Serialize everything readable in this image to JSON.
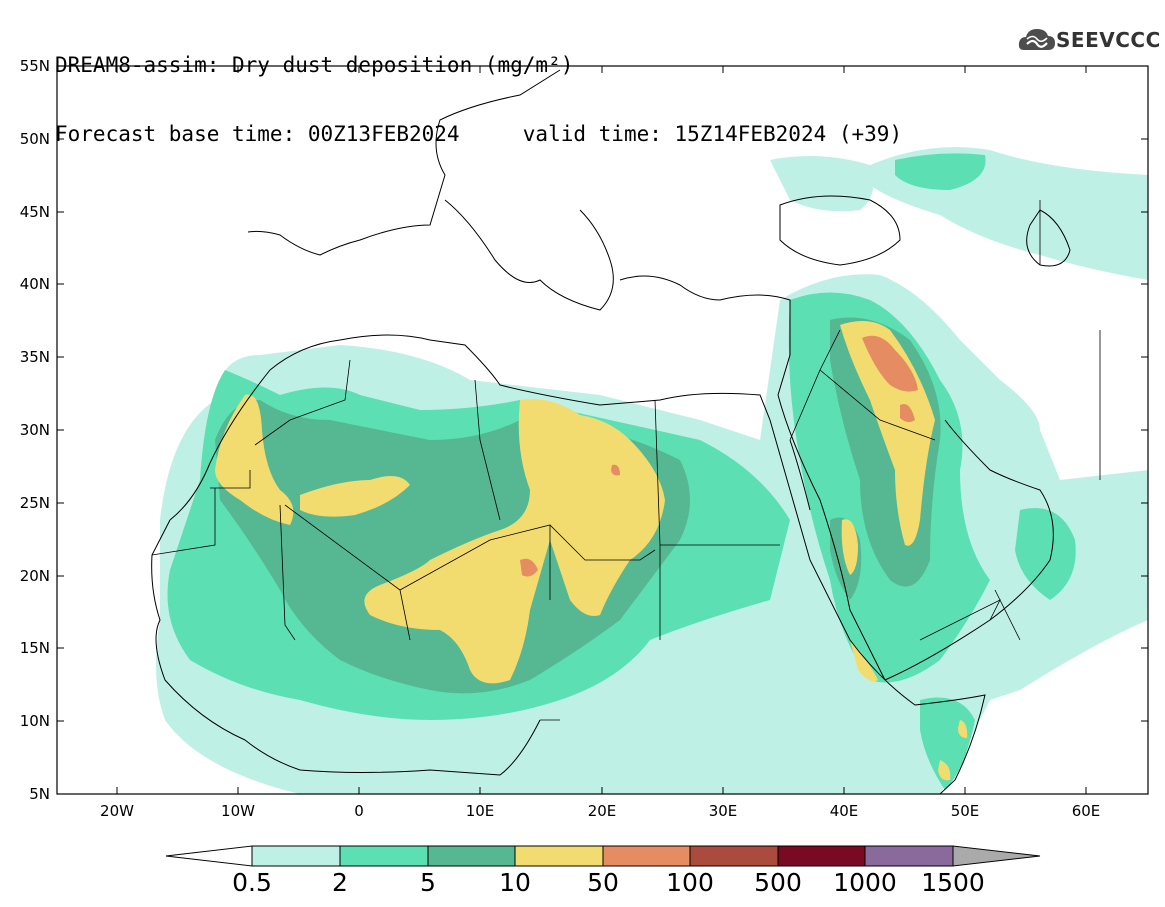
{
  "header": {
    "title_line1": "DREAM8-assim: Dry dust deposition (mg/m²)",
    "title_line2": "Forecast base time: 00Z13FEB2024     valid time: 15Z14FEB2024 (+39)"
  },
  "logo": {
    "text": "SEEVCCC",
    "icon": "cloud-icon",
    "color": "#4d4d4d"
  },
  "map": {
    "lon_range": [
      -25,
      65
    ],
    "lat_range": [
      5,
      55
    ],
    "y_ticks": [
      "55N",
      "50N",
      "45N",
      "40N",
      "35N",
      "30N",
      "25N",
      "20N",
      "15N",
      "10N",
      "5N"
    ],
    "x_ticks": [
      "20W",
      "10W",
      "0",
      "10E",
      "20E",
      "30E",
      "40E",
      "50E",
      "60E"
    ]
  },
  "colorbar": {
    "levels": [
      "0.5",
      "2",
      "5",
      "10",
      "50",
      "100",
      "500",
      "1000",
      "1500"
    ],
    "colors": [
      "#bff0e6",
      "#5ce0b3",
      "#55b893",
      "#f2dc70",
      "#e68c62",
      "#ab4b3d",
      "#7a0a23",
      "#8a6a9d",
      "#aaaaaa"
    ],
    "low_extension_color": "#ffffff"
  }
}
